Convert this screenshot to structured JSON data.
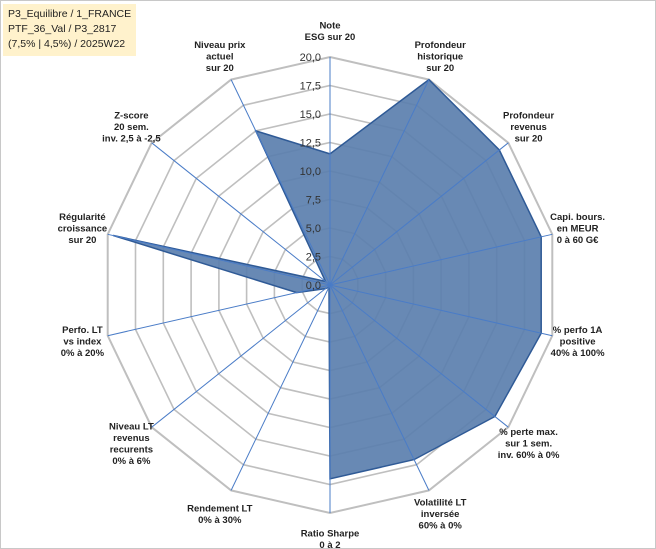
{
  "info": {
    "line1": "P3_Equilibre / 1_FRANCE",
    "line2": "PTF_36_Val / P3_2817",
    "line3": "(7,5% | 4,5%) / 2025W22"
  },
  "chart_data": {
    "type": "radar",
    "title": "",
    "rmin": 0,
    "rmax": 20,
    "ticks": [
      "0,0",
      "2,5",
      "5,0",
      "7,5",
      "10,0",
      "12,5",
      "15,0",
      "17,5",
      "20,0"
    ],
    "categories": [
      [
        "Note",
        "ESG sur 20"
      ],
      [
        "Profondeur",
        "historique",
        "sur 20"
      ],
      [
        "Profondeur",
        "revenus",
        "sur 20"
      ],
      [
        "Capi. bours.",
        "en MEUR",
        "0 à 60 G€"
      ],
      [
        "% perfo 1A",
        "positive",
        "40% à 100%"
      ],
      [
        "% perte max.",
        "sur 1 sem.",
        "inv. 60% à 0%"
      ],
      [
        "Volatilité LT",
        "inversée",
        "60% à 0%"
      ],
      [
        "Ratio Sharpe",
        "0 à 2"
      ],
      [
        "Rendement LT",
        "0% à 30%"
      ],
      [
        "Niveau LT",
        "revenus",
        "recurents",
        "0% à 6%"
      ],
      [
        "Perfo. LT",
        "vs index",
        "0% à 20%"
      ],
      [
        "Régularité",
        "croissance",
        "sur 20"
      ],
      [
        "Z-score",
        "20 sem.",
        "inv. 2,5 à -2,5"
      ],
      [
        "Niveau prix",
        "actuel",
        "sur 20"
      ]
    ],
    "series": [
      {
        "values": [
          11.5,
          20,
          19,
          19,
          19,
          18.5,
          17,
          17,
          0.2,
          0.5,
          3,
          19.5,
          0.5,
          15
        ]
      }
    ],
    "colors": {
      "fill": "#5b7fae",
      "stroke": "#2f5a96",
      "grid": "#bfbfbf",
      "spoke": "#4a7cc7"
    }
  }
}
